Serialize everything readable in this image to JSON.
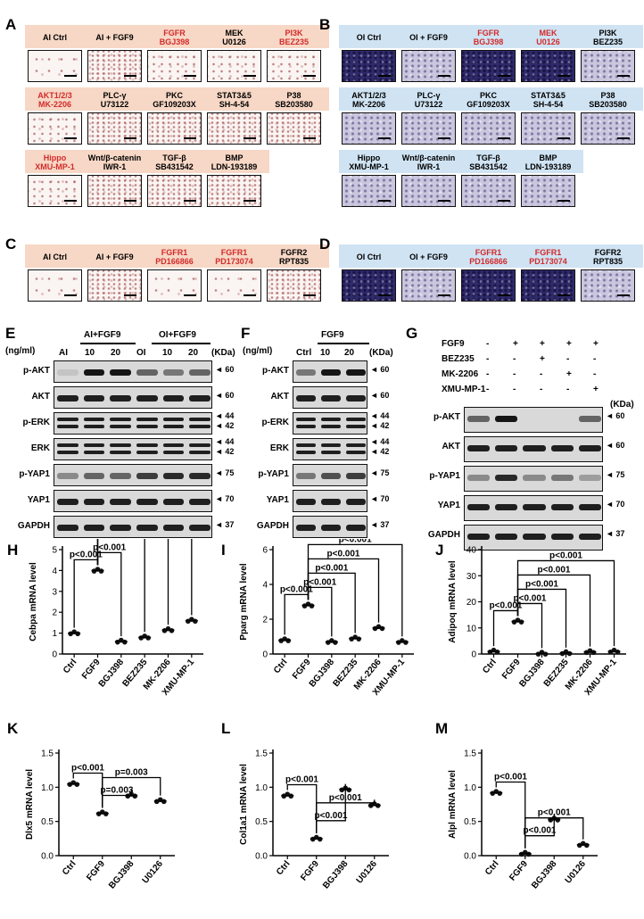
{
  "panels": {
    "A": {
      "letter": "A",
      "headers": [
        {
          "t": "AI Ctrl",
          "red": false
        },
        {
          "t": "AI + FGF9",
          "red": false
        },
        {
          "t": "FGFR\nBGJ398",
          "red": true
        },
        {
          "t": "MEK\nU0126",
          "red": false
        },
        {
          "t": "PI3K\nBEZ235",
          "red": true
        },
        {
          "t": "AKT1/2/3\nMK-2206",
          "red": true
        },
        {
          "t": "PLC-γ\nU73122",
          "red": false
        },
        {
          "t": "PKC\nGF109203X",
          "red": false
        },
        {
          "t": "STAT3&5\nSH-4-54",
          "red": false
        },
        {
          "t": "P38\nSB203580",
          "red": false
        },
        {
          "t": "Hippo\nXMU-MP-1",
          "red": true
        },
        {
          "t": "Wnt/β-catenin\nIWR-1",
          "red": false
        },
        {
          "t": "TGF-β\nSB431542",
          "red": false
        },
        {
          "t": "BMP\nLDN-193189",
          "red": false
        }
      ]
    },
    "B": {
      "letter": "B",
      "headers": [
        {
          "t": "OI Ctrl",
          "red": false
        },
        {
          "t": "OI + FGF9",
          "red": false
        },
        {
          "t": "FGFR\nBGJ398",
          "red": true
        },
        {
          "t": "MEK\nU0126",
          "red": true
        },
        {
          "t": "PI3K\nBEZ235",
          "red": false
        },
        {
          "t": "AKT1/2/3\nMK-2206",
          "red": false
        },
        {
          "t": "PLC-γ\nU73122",
          "red": false
        },
        {
          "t": "PKC\nGF109203X",
          "red": false
        },
        {
          "t": "STAT3&5\nSH-4-54",
          "red": false
        },
        {
          "t": "P38\nSB203580",
          "red": false
        },
        {
          "t": "Hippo\nXMU-MP-1",
          "red": false
        },
        {
          "t": "Wnt/β-catenin\nIWR-1",
          "red": false
        },
        {
          "t": "TGF-β\nSB431542",
          "red": false
        },
        {
          "t": "BMP\nLDN-193189",
          "red": false
        }
      ]
    },
    "C": {
      "letter": "C",
      "headers": [
        {
          "t": "AI Ctrl",
          "red": false
        },
        {
          "t": "AI + FGF9",
          "red": false
        },
        {
          "t": "FGFR1\nPD166866",
          "red": true
        },
        {
          "t": "FGFR1\nPD173074",
          "red": true
        },
        {
          "t": "FGFR2\nRPT835",
          "red": false
        }
      ]
    },
    "D": {
      "letter": "D",
      "headers": [
        {
          "t": "OI Ctrl",
          "red": false
        },
        {
          "t": "OI + FGF9",
          "red": false
        },
        {
          "t": "FGFR1\nPD166866",
          "red": true
        },
        {
          "t": "FGFR1\nPD173074",
          "red": true
        },
        {
          "t": "FGFR2\nRPT835",
          "red": false
        }
      ]
    }
  },
  "blots": {
    "E": {
      "letter": "E",
      "unit": "(ng/ml)",
      "group1": "AI+FGF9",
      "group2": "OI+FGF9",
      "lanes": [
        "AI",
        "10",
        "20",
        "OI",
        "10",
        "20"
      ],
      "kda": "(KDa)",
      "rows": [
        {
          "label": "p-AKT",
          "mw": [
            "60"
          ]
        },
        {
          "label": "AKT",
          "mw": [
            "60"
          ]
        },
        {
          "label": "p-ERK",
          "mw": [
            "44",
            "42"
          ]
        },
        {
          "label": "ERK",
          "mw": [
            "44",
            "42"
          ]
        },
        {
          "label": "p-YAP1",
          "mw": [
            "75"
          ]
        },
        {
          "label": "YAP1",
          "mw": [
            "70"
          ]
        },
        {
          "label": "GAPDH",
          "mw": [
            "37"
          ]
        }
      ]
    },
    "F": {
      "letter": "F",
      "unit": "(ng/ml)",
      "group": "FGF9",
      "lanes": [
        "Ctrl",
        "10",
        "20"
      ],
      "kda": "(KDa)",
      "rows": [
        {
          "label": "p-AKT",
          "mw": [
            "60"
          ]
        },
        {
          "label": "AKT",
          "mw": [
            "60"
          ]
        },
        {
          "label": "p-ERK",
          "mw": [
            "44",
            "42"
          ]
        },
        {
          "label": "ERK",
          "mw": [
            "44",
            "42"
          ]
        },
        {
          "label": "p-YAP1",
          "mw": [
            "75"
          ]
        },
        {
          "label": "YAP1",
          "mw": [
            "70"
          ]
        },
        {
          "label": "GAPDH",
          "mw": [
            "37"
          ]
        }
      ]
    },
    "G": {
      "letter": "G",
      "kda": "(KDa)",
      "conditions": [
        {
          "name": "FGF9",
          "signs": [
            "-",
            "+",
            "+",
            "+",
            "+"
          ]
        },
        {
          "name": "BEZ235",
          "signs": [
            "-",
            "-",
            "+",
            "-",
            "-"
          ]
        },
        {
          "name": "MK-2206",
          "signs": [
            "-",
            "-",
            "-",
            "+",
            "-"
          ]
        },
        {
          "name": "XMU-MP-1",
          "signs": [
            "-",
            "-",
            "-",
            "-",
            "+"
          ]
        }
      ],
      "rows": [
        {
          "label": "p-AKT",
          "mw": [
            "60"
          ]
        },
        {
          "label": "AKT",
          "mw": [
            "60"
          ]
        },
        {
          "label": "p-YAP1",
          "mw": [
            "75"
          ]
        },
        {
          "label": "YAP1",
          "mw": [
            "70"
          ]
        },
        {
          "label": "GAPDH",
          "mw": [
            "37"
          ]
        }
      ]
    }
  },
  "chart_data": [
    {
      "id": "H",
      "type": "scatter",
      "ylabel": "Cebpa mRNA level",
      "ylim": [
        0,
        5
      ],
      "yticks": [
        0,
        1,
        2,
        3,
        4,
        5
      ],
      "categories": [
        "Ctrl",
        "FGF9",
        "BGJ398",
        "BEZ235",
        "MK-2206",
        "XMU-MP-1"
      ],
      "values": [
        1.0,
        4.0,
        0.6,
        0.8,
        1.15,
        1.6
      ],
      "brackets": [
        {
          "from": 0,
          "to": 1,
          "label": "p<0.001"
        },
        {
          "from": 1,
          "to": 2,
          "label": "p<0.001"
        },
        {
          "from": 1,
          "to": 3,
          "label": "p<0.001"
        },
        {
          "from": 1,
          "to": 4,
          "label": "p<0.001"
        },
        {
          "from": 1,
          "to": 5,
          "label": "p<0.001"
        }
      ]
    },
    {
      "id": "I",
      "type": "scatter",
      "ylabel": "Pparg mRNA level",
      "ylim": [
        0,
        6
      ],
      "yticks": [
        0,
        2,
        4,
        6
      ],
      "categories": [
        "Ctrl",
        "FGF9",
        "BGJ398",
        "BEZ235",
        "MK-2206",
        "XMU-MP-1"
      ],
      "values": [
        0.8,
        2.8,
        0.7,
        0.9,
        1.5,
        0.7
      ],
      "brackets": [
        {
          "from": 0,
          "to": 1,
          "label": "p<0.001"
        },
        {
          "from": 1,
          "to": 2,
          "label": "p<0.001"
        },
        {
          "from": 1,
          "to": 3,
          "label": "p<0.001"
        },
        {
          "from": 1,
          "to": 4,
          "label": "p<0.001"
        },
        {
          "from": 1,
          "to": 5,
          "label": "p<0.001"
        }
      ]
    },
    {
      "id": "J",
      "type": "scatter",
      "ylabel": "Adipoq mRNA level",
      "ylim": [
        0,
        40
      ],
      "yticks": [
        0,
        10,
        20,
        30,
        40
      ],
      "categories": [
        "Ctrl",
        "FGF9",
        "BGJ398",
        "BEZ235",
        "MK-2206",
        "XMU-MP-1"
      ],
      "values": [
        1.0,
        12.5,
        0.2,
        0.4,
        0.8,
        1.0
      ],
      "brackets": [
        {
          "from": 0,
          "to": 1,
          "label": "p<0.001"
        },
        {
          "from": 1,
          "to": 2,
          "label": "p<0.001"
        },
        {
          "from": 1,
          "to": 3,
          "label": "p<0.001"
        },
        {
          "from": 1,
          "to": 4,
          "label": "p<0.001"
        },
        {
          "from": 1,
          "to": 5,
          "label": "p<0.001"
        }
      ]
    },
    {
      "id": "K",
      "type": "scatter",
      "ylabel": "Dlx5 mRNA level",
      "ylim": [
        0,
        1.5
      ],
      "yticks": [
        0,
        0.5,
        1.0,
        1.5
      ],
      "categories": [
        "Ctrl",
        "FGF9",
        "BGJ398",
        "U0126"
      ],
      "values": [
        1.05,
        0.62,
        0.88,
        0.8
      ],
      "brackets": [
        {
          "from": 0,
          "to": 1,
          "label": "p<0.001"
        },
        {
          "from": 1,
          "to": 2,
          "label": "p=0.003"
        },
        {
          "from": 1,
          "to": 3,
          "label": "p=0.003"
        }
      ]
    },
    {
      "id": "L",
      "type": "scatter",
      "ylabel": "Col1a1 mRNA level",
      "ylim": [
        0,
        1.5
      ],
      "yticks": [
        0,
        0.5,
        1.0,
        1.5
      ],
      "categories": [
        "Ctrl",
        "FGF9",
        "BGJ398",
        "U0126"
      ],
      "values": [
        0.88,
        0.25,
        0.97,
        0.74
      ],
      "brackets": [
        {
          "from": 0,
          "to": 1,
          "label": "p<0.001"
        },
        {
          "from": 1,
          "to": 2,
          "label": "p<0.001"
        },
        {
          "from": 1,
          "to": 3,
          "label": "p<0.001"
        }
      ]
    },
    {
      "id": "M",
      "type": "scatter",
      "ylabel": "Alpl mRNA level",
      "ylim": [
        0,
        1.5
      ],
      "yticks": [
        0,
        0.5,
        1.0,
        1.5
      ],
      "categories": [
        "Ctrl",
        "FGF9",
        "BGJ398",
        "U0126"
      ],
      "values": [
        0.92,
        0.03,
        0.53,
        0.16
      ],
      "brackets": [
        {
          "from": 0,
          "to": 1,
          "label": "p<0.001"
        },
        {
          "from": 1,
          "to": 2,
          "label": "p<0.001"
        },
        {
          "from": 1,
          "to": 3,
          "label": "p<0.001"
        }
      ]
    }
  ]
}
